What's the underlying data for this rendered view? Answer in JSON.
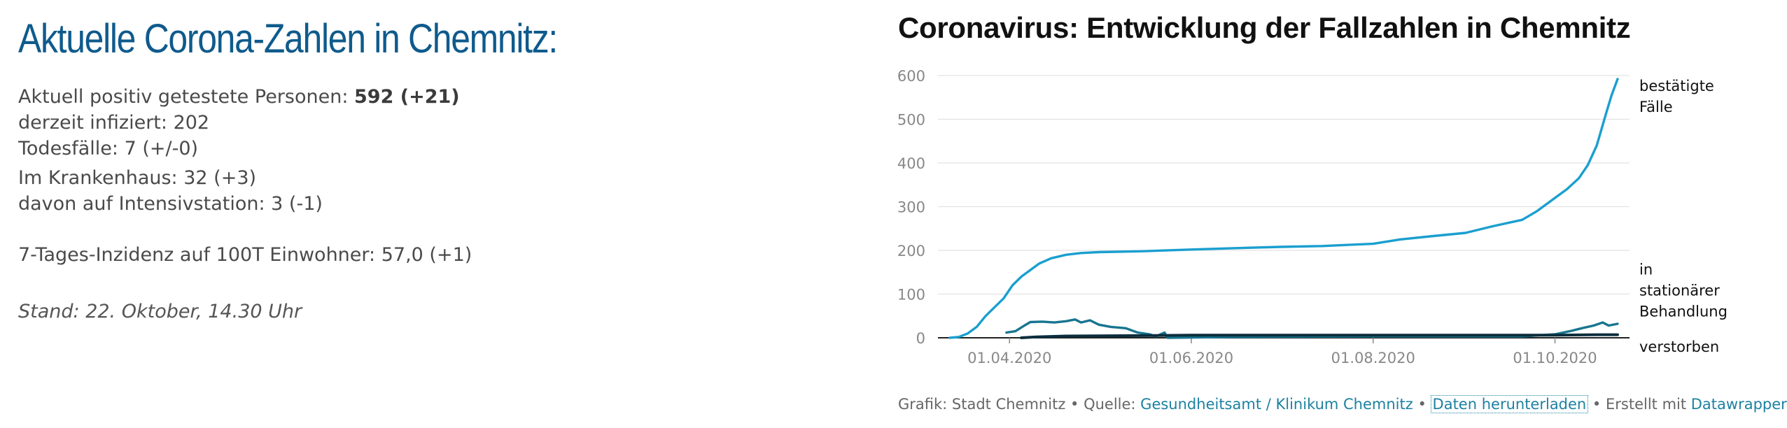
{
  "left": {
    "headline": "Aktuelle Corona-Zahlen in Chemnitz:",
    "positive_label": "Aktuell positiv getestete Personen: ",
    "positive_value": "592 (+21)",
    "infected": "derzeit infiziert: 202",
    "deaths": "Todesfälle: 7 (+/-0)",
    "hospital": "Im Krankenhaus: 32 (+3)",
    "icu": "davon auf Intensivstation: 3 (-1)",
    "incidence": "7-Tages-Inzidenz auf 100T Einwohner: 57,0 (+1)",
    "stand": "Stand: 22. Oktober, 14.30 Uhr"
  },
  "footer": {
    "prefix": "Grafik: Stadt Chemnitz • Quelle: ",
    "source": "Gesundheitsamt / Klinikum Chemnitz",
    "sep1": " • ",
    "download": "Daten herunterladen",
    "sep2": " • Erstellt mit ",
    "tool": "Datawrapper"
  },
  "chart_data": {
    "type": "line",
    "title": "Coronavirus: Entwicklung der Fallzahlen in Chemnitz",
    "xlabel": "",
    "ylabel": "",
    "ylim": [
      0,
      600
    ],
    "yticks": [
      0,
      100,
      200,
      300,
      400,
      500,
      600
    ],
    "xlim": [
      "2020-03-08",
      "2020-10-26"
    ],
    "xticks": [
      "2020-04-01",
      "2020-06-01",
      "2020-08-01",
      "2020-10-01"
    ],
    "xtick_labels": [
      "01.04.2020",
      "01.06.2020",
      "01.08.2020",
      "01.10.2020"
    ],
    "grid": true,
    "legend": "direct labels at line ends (right)",
    "series": [
      {
        "name": "bestätigte Fälle",
        "color": "#1a9fcf",
        "points": [
          [
            "2020-03-12",
            0
          ],
          [
            "2020-03-15",
            2
          ],
          [
            "2020-03-18",
            10
          ],
          [
            "2020-03-21",
            25
          ],
          [
            "2020-03-24",
            50
          ],
          [
            "2020-03-27",
            70
          ],
          [
            "2020-03-30",
            90
          ],
          [
            "2020-04-02",
            120
          ],
          [
            "2020-04-05",
            140
          ],
          [
            "2020-04-08",
            155
          ],
          [
            "2020-04-11",
            170
          ],
          [
            "2020-04-15",
            182
          ],
          [
            "2020-04-20",
            190
          ],
          [
            "2020-04-25",
            194
          ],
          [
            "2020-05-01",
            196
          ],
          [
            "2020-05-15",
            198
          ],
          [
            "2020-06-01",
            202
          ],
          [
            "2020-06-15",
            205
          ],
          [
            "2020-07-01",
            208
          ],
          [
            "2020-07-15",
            210
          ],
          [
            "2020-08-01",
            215
          ],
          [
            "2020-08-10",
            225
          ],
          [
            "2020-08-20",
            232
          ],
          [
            "2020-09-01",
            240
          ],
          [
            "2020-09-10",
            255
          ],
          [
            "2020-09-20",
            270
          ],
          [
            "2020-09-25",
            290
          ],
          [
            "2020-10-01",
            320
          ],
          [
            "2020-10-05",
            340
          ],
          [
            "2020-10-09",
            365
          ],
          [
            "2020-10-12",
            395
          ],
          [
            "2020-10-15",
            440
          ],
          [
            "2020-10-18",
            510
          ],
          [
            "2020-10-20",
            555
          ],
          [
            "2020-10-22",
            592
          ]
        ]
      },
      {
        "name": "in stationärer Behandlung",
        "color": "#17758f",
        "points": [
          [
            "2020-03-31",
            12
          ],
          [
            "2020-04-03",
            15
          ],
          [
            "2020-04-06",
            28
          ],
          [
            "2020-04-08",
            36
          ],
          [
            "2020-04-12",
            37
          ],
          [
            "2020-04-16",
            35
          ],
          [
            "2020-04-20",
            38
          ],
          [
            "2020-04-23",
            42
          ],
          [
            "2020-04-25",
            35
          ],
          [
            "2020-04-28",
            40
          ],
          [
            "2020-05-01",
            30
          ],
          [
            "2020-05-05",
            25
          ],
          [
            "2020-05-10",
            22
          ],
          [
            "2020-05-14",
            12
          ],
          [
            "2020-05-18",
            8
          ],
          [
            "2020-05-20",
            3
          ],
          [
            "2020-05-23",
            12
          ],
          [
            "2020-05-24",
            0
          ],
          [
            "2020-06-15",
            2
          ],
          [
            "2020-08-01",
            3
          ],
          [
            "2020-09-20",
            3
          ],
          [
            "2020-10-01",
            8
          ],
          [
            "2020-10-06",
            15
          ],
          [
            "2020-10-10",
            22
          ],
          [
            "2020-10-14",
            28
          ],
          [
            "2020-10-17",
            35
          ],
          [
            "2020-10-19",
            28
          ],
          [
            "2020-10-22",
            32
          ]
        ]
      },
      {
        "name": "verstorben",
        "color": "#0b2e3d",
        "points": [
          [
            "2020-04-05",
            0
          ],
          [
            "2020-04-10",
            2
          ],
          [
            "2020-04-20",
            4
          ],
          [
            "2020-05-15",
            5
          ],
          [
            "2020-06-01",
            6
          ],
          [
            "2020-08-01",
            6
          ],
          [
            "2020-10-01",
            6
          ],
          [
            "2020-10-15",
            7
          ],
          [
            "2020-10-22",
            7
          ]
        ]
      }
    ]
  }
}
